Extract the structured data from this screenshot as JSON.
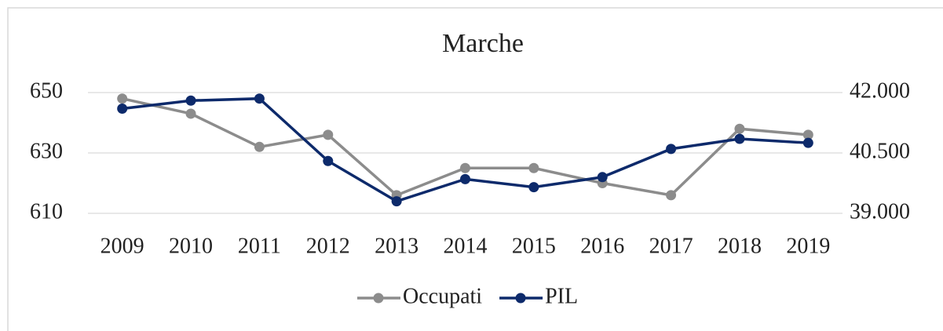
{
  "chart_data": {
    "type": "line",
    "title": "Marche",
    "categories": [
      "2009",
      "2010",
      "2011",
      "2012",
      "2013",
      "2014",
      "2015",
      "2016",
      "2017",
      "2018",
      "2019"
    ],
    "series": [
      {
        "name": "Occupati",
        "color": "#8c8c8c",
        "values": [
          648,
          643,
          632,
          636,
          616,
          625,
          625,
          620,
          616,
          638,
          636
        ]
      },
      {
        "name": "PIL",
        "color": "#0d2a6b",
        "axis": "y2",
        "values": [
          41600,
          41800,
          41850,
          40300,
          39300,
          39850,
          39650,
          39900,
          40600,
          40850,
          40750
        ]
      }
    ],
    "ylim": [
      610,
      650
    ],
    "yticks": [
      610,
      630,
      650
    ],
    "y2lim": [
      39000,
      42000
    ],
    "y2ticks": [
      {
        "value": 39000,
        "label": "39.000"
      },
      {
        "value": 40500,
        "label": "40.500"
      },
      {
        "value": 42000,
        "label": "42.000"
      }
    ],
    "grid": true,
    "legend": "bottom"
  }
}
